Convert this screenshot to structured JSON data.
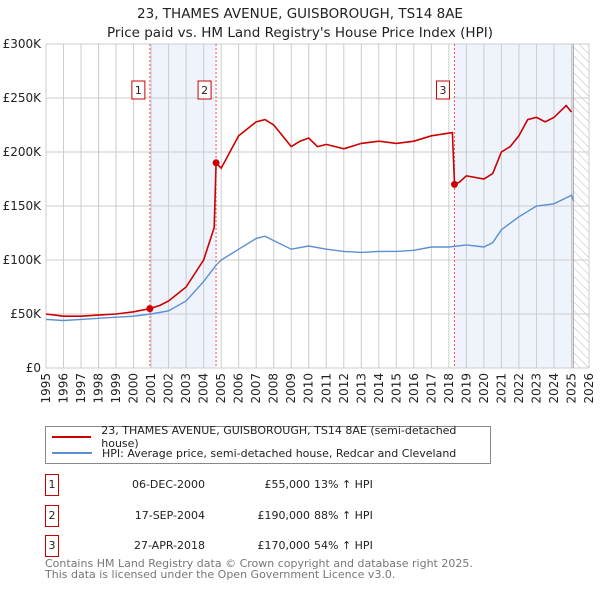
{
  "chart_data": {
    "type": "line",
    "title": "23, THAMES AVENUE, GUISBOROUGH, TS14 8AE",
    "subtitle": "Price paid vs. HM Land Registry's House Price Index (HPI)",
    "xlim": [
      1995,
      2026
    ],
    "ylim": [
      0,
      300000
    ],
    "x_ticks": [
      "1995",
      "1996",
      "1997",
      "1998",
      "1999",
      "2000",
      "2001",
      "2002",
      "2003",
      "2004",
      "2005",
      "2006",
      "2007",
      "2008",
      "2009",
      "2010",
      "2011",
      "2012",
      "2013",
      "2014",
      "2015",
      "2016",
      "2017",
      "2018",
      "2019",
      "2020",
      "2021",
      "2022",
      "2023",
      "2024",
      "2025",
      "2026"
    ],
    "y_ticks": [
      {
        "v": 0,
        "label": "£0"
      },
      {
        "v": 50000,
        "label": "£50K"
      },
      {
        "v": 100000,
        "label": "£100K"
      },
      {
        "v": 150000,
        "label": "£150K"
      },
      {
        "v": 200000,
        "label": "£200K"
      },
      {
        "v": 250000,
        "label": "£250K"
      },
      {
        "v": 300000,
        "label": "£300K"
      }
    ],
    "grid": true,
    "forecast_hatch_from": 2025.1,
    "series": [
      {
        "name": "23, THAMES AVENUE, GUISBOROUGH, TS14 8AE (semi-detached house)",
        "color": "#cc0000",
        "x": [
          1995,
          1996,
          1997,
          1998,
          1999,
          2000,
          2000.93,
          2001.5,
          2002,
          2003,
          2004,
          2004.6,
          2004.71,
          2005,
          2005.5,
          2006,
          2007,
          2007.5,
          2008,
          2008.5,
          2009,
          2009.5,
          2010,
          2010.5,
          2011,
          2012,
          2013,
          2014,
          2015,
          2016,
          2017,
          2018.2,
          2018.32,
          2018.6,
          2019,
          2020,
          2020.5,
          2021,
          2021.5,
          2022,
          2022.5,
          2023,
          2023.5,
          2024,
          2024.7,
          2025
        ],
        "y": [
          50000,
          48000,
          48000,
          49000,
          50000,
          52000,
          55000,
          58000,
          62000,
          75000,
          100000,
          130000,
          190000,
          185000,
          200000,
          215000,
          228000,
          230000,
          225000,
          215000,
          205000,
          210000,
          213000,
          205000,
          207000,
          203000,
          208000,
          210000,
          208000,
          210000,
          215000,
          218000,
          170000,
          172000,
          178000,
          175000,
          180000,
          200000,
          205000,
          215000,
          230000,
          232000,
          228000,
          232000,
          243000,
          237000
        ]
      },
      {
        "name": "HPI: Average price, semi-detached house, Redcar and Cleveland",
        "color": "#5b8fd4",
        "x": [
          1995,
          1996,
          1997,
          1998,
          1999,
          2000,
          2001,
          2002,
          2003,
          2004,
          2004.7,
          2005,
          2006,
          2007,
          2007.5,
          2008,
          2009,
          2010,
          2011,
          2012,
          2013,
          2014,
          2015,
          2016,
          2017,
          2018,
          2019,
          2020,
          2020.5,
          2021,
          2022,
          2023,
          2024,
          2025,
          2025.1
        ],
        "y": [
          45000,
          44000,
          45000,
          46000,
          47000,
          48000,
          50000,
          53000,
          62000,
          80000,
          95000,
          100000,
          110000,
          120000,
          122000,
          118000,
          110000,
          113000,
          110000,
          108000,
          107000,
          108000,
          108000,
          109000,
          112000,
          112000,
          114000,
          112000,
          116000,
          128000,
          140000,
          150000,
          152000,
          160000,
          155000
        ]
      }
    ],
    "sales": [
      {
        "label": "1",
        "x": 2000.93,
        "price": 55000,
        "date": "06-DEC-2000",
        "price_text": "£55,000",
        "hpi_text": "13% ↑ HPI"
      },
      {
        "label": "2",
        "x": 2004.71,
        "price": 190000,
        "date": "17-SEP-2004",
        "price_text": "£190,000",
        "hpi_text": "88% ↑ HPI"
      },
      {
        "label": "3",
        "x": 2018.32,
        "price": 170000,
        "date": "27-APR-2018",
        "price_text": "£170,000",
        "hpi_text": "54% ↑ HPI"
      }
    ]
  },
  "footer": [
    "Contains HM Land Registry data © Crown copyright and database right 2025.",
    "This data is licensed under the Open Government Licence v3.0."
  ]
}
